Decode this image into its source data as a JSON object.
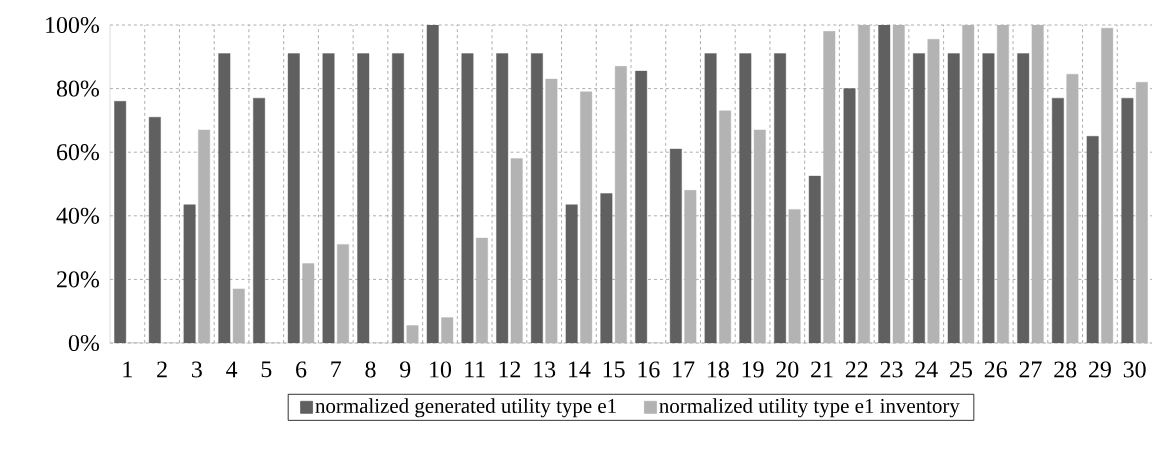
{
  "chart_data": {
    "type": "bar",
    "categories": [
      "1",
      "2",
      "3",
      "4",
      "5",
      "6",
      "7",
      "8",
      "9",
      "10",
      "11",
      "12",
      "13",
      "14",
      "15",
      "16",
      "17",
      "18",
      "19",
      "20",
      "21",
      "22",
      "23",
      "24",
      "25",
      "26",
      "27",
      "28",
      "29",
      "30"
    ],
    "series": [
      {
        "name": "normalized generated utility type e1",
        "color": "#606060",
        "values": [
          76,
          71,
          43.5,
          91,
          77,
          91,
          91,
          91,
          91,
          100,
          91,
          91,
          91,
          43.5,
          47,
          85.5,
          61,
          91,
          91,
          91,
          52.5,
          80,
          100,
          91,
          91,
          91,
          91,
          77,
          65,
          77
        ]
      },
      {
        "name": "normalized utility type e1 inventory",
        "color": "#b3b3b3",
        "values": [
          0,
          0,
          67,
          17,
          0,
          25,
          31,
          0,
          5.5,
          8,
          33,
          58,
          83,
          79,
          87,
          0,
          48,
          73,
          67,
          42,
          98,
          100,
          100,
          95.5,
          100,
          100,
          100,
          84.5,
          99,
          82
        ]
      }
    ],
    "ylim": [
      0,
      100
    ],
    "yticks": [
      {
        "value": 0,
        "label": "0%"
      },
      {
        "value": 20,
        "label": "20%"
      },
      {
        "value": 40,
        "label": "40%"
      },
      {
        "value": 60,
        "label": "60%"
      },
      {
        "value": 80,
        "label": "80%"
      },
      {
        "value": 100,
        "label": "100%"
      }
    ],
    "grid": true,
    "legend": "bottom"
  }
}
